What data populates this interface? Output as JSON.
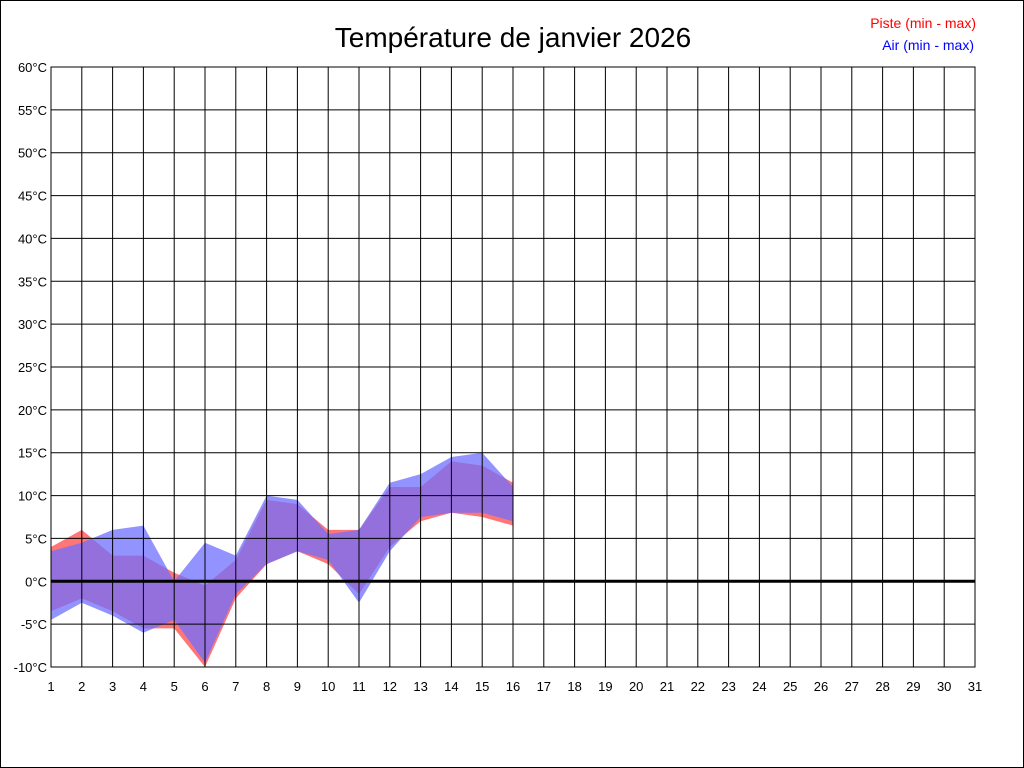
{
  "chart_data": {
    "type": "area",
    "title": "Température de janvier 2026",
    "xlabel": "",
    "ylabel": "",
    "x": [
      1,
      2,
      3,
      4,
      5,
      6,
      7,
      8,
      9,
      10,
      11,
      12,
      13,
      14,
      15,
      16
    ],
    "x_ticks": [
      1,
      2,
      3,
      4,
      5,
      6,
      7,
      8,
      9,
      10,
      11,
      12,
      13,
      14,
      15,
      16,
      17,
      18,
      19,
      20,
      21,
      22,
      23,
      24,
      25,
      26,
      27,
      28,
      29,
      30,
      31
    ],
    "xlim": [
      1,
      31
    ],
    "y_ticks": [
      -10,
      -5,
      0,
      5,
      10,
      15,
      20,
      25,
      30,
      35,
      40,
      45,
      50,
      55,
      60
    ],
    "y_tick_labels": [
      "-10°C",
      "-5°C",
      "0°C",
      "5°C",
      "10°C",
      "15°C",
      "20°C",
      "25°C",
      "30°C",
      "35°C",
      "40°C",
      "45°C",
      "50°C",
      "55°C",
      "60°C"
    ],
    "ylim": [
      -10,
      60
    ],
    "grid": true,
    "legend_position": "top-right",
    "series": [
      {
        "name": "Piste (min - max)",
        "color": "#ff0000",
        "fill": "#ff6f6f",
        "min": [
          -3.5,
          -2,
          -3.5,
          -5.5,
          -5.5,
          -10,
          -2,
          2,
          3.5,
          2,
          -1.5,
          4,
          7,
          8,
          7.5,
          6.5
        ],
        "max": [
          4,
          6,
          3,
          3,
          1,
          -0.5,
          2.5,
          9.5,
          9,
          6,
          6,
          11,
          11,
          14,
          13.5,
          11.5
        ]
      },
      {
        "name": "Air (min - max)",
        "color": "#0000ff",
        "fill": "#6f6fff",
        "min": [
          -4.5,
          -2.5,
          -4,
          -6,
          -4.5,
          -9.5,
          -1.5,
          2,
          3.5,
          2.5,
          -2.5,
          3.5,
          7.5,
          8,
          8,
          7
        ],
        "max": [
          3.5,
          4.5,
          6,
          6.5,
          0,
          4.5,
          3,
          10,
          9.5,
          5.5,
          6,
          11.5,
          12.5,
          14.5,
          15,
          11
        ]
      }
    ],
    "zero_line": 0
  }
}
